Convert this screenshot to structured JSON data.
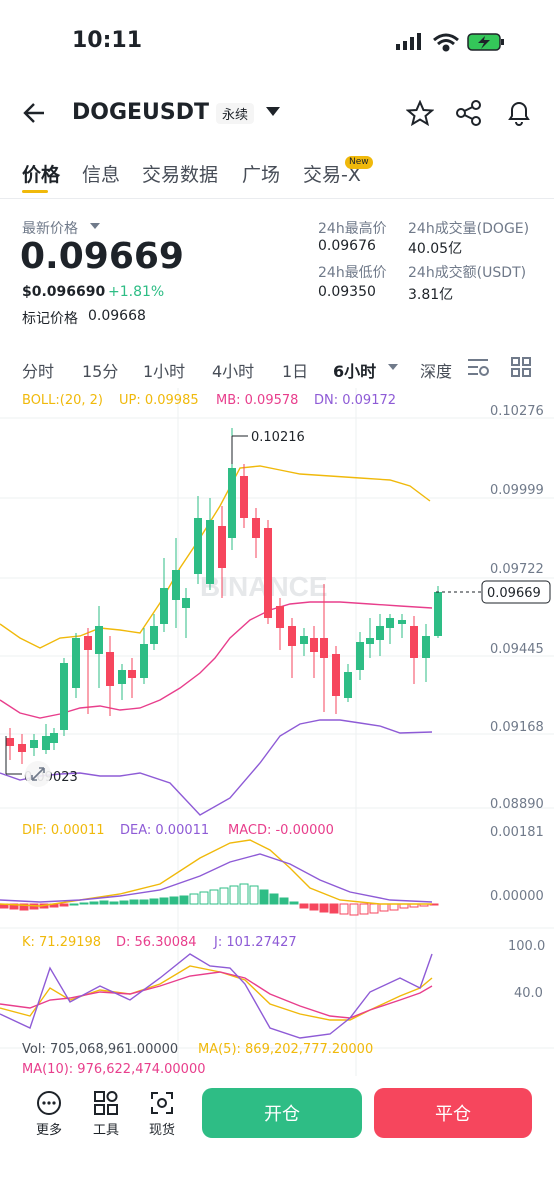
{
  "status_bar": {
    "time": "10:11"
  },
  "header": {
    "title": "DOGEUSDT",
    "contract_type": "永续"
  },
  "tabs": [
    {
      "label": "价格",
      "active": true
    },
    {
      "label": "信息"
    },
    {
      "label": "交易数据"
    },
    {
      "label": "广场"
    },
    {
      "label": "交易-X",
      "badge": "New"
    }
  ],
  "ticker": {
    "last_price_label": "最新价格",
    "last_price": "0.09669",
    "usd_price": "$0.096690",
    "change": "+1.81%",
    "mark_price_label": "标记价格",
    "mark_price": "0.09668",
    "high_label": "24h最高价",
    "high": "0.09676",
    "low_label": "24h最低价",
    "low": "0.09350",
    "vol_doge_label": "24h成交量(DOGE)",
    "vol_doge": "40.05亿",
    "vol_usdt_label": "24h成交额(USDT)",
    "vol_usdt": "3.81亿"
  },
  "timeframes": [
    "分时",
    "15分",
    "1小时",
    "4小时",
    "1日",
    "6小时",
    "深度"
  ],
  "active_timeframe": "6小时",
  "indicators": {
    "boll": {
      "name": "BOLL:(20, 2)",
      "up": "UP: 0.09985",
      "mb": "MB: 0.09578",
      "dn": "DN: 0.09172"
    },
    "macd": {
      "dif": "DIF: 0.00011",
      "dea": "DEA: 0.00011",
      "macd": "MACD: -0.00000"
    },
    "kdj": {
      "k": "K: 71.29198",
      "d": "D: 56.30084",
      "j": "J: 101.27427"
    },
    "vol": {
      "vol": "Vol: 705,068,961.00000",
      "ma5": "MA(5): 869,202,777.20000",
      "ma10": "MA(10): 976,622,474.00000"
    }
  },
  "price_axis": [
    "0.10276",
    "0.09999",
    "0.09722",
    "0.09445",
    "0.09168",
    "0.08890"
  ],
  "macd_axis": [
    "0.00181",
    "0.00000"
  ],
  "kdj_axis": [
    "100.0",
    "40.0"
  ],
  "annotations": {
    "high_marker": "0.10216",
    "low_marker": "0.09023",
    "current_price": "0.09669"
  },
  "watermark": "BINANCE",
  "colors": {
    "up": "#2ebd85",
    "down": "#f6465d",
    "accent": "#f0b90b",
    "boll_mb": "#e83e8c",
    "boll_dn": "#8e5bd6"
  },
  "bottom": {
    "tools": [
      {
        "label": "更多",
        "icon": "more-icon"
      },
      {
        "label": "工具",
        "icon": "tools-icon"
      },
      {
        "label": "现货",
        "icon": "spot-icon"
      }
    ],
    "open_label": "开仓",
    "close_label": "平仓"
  }
}
